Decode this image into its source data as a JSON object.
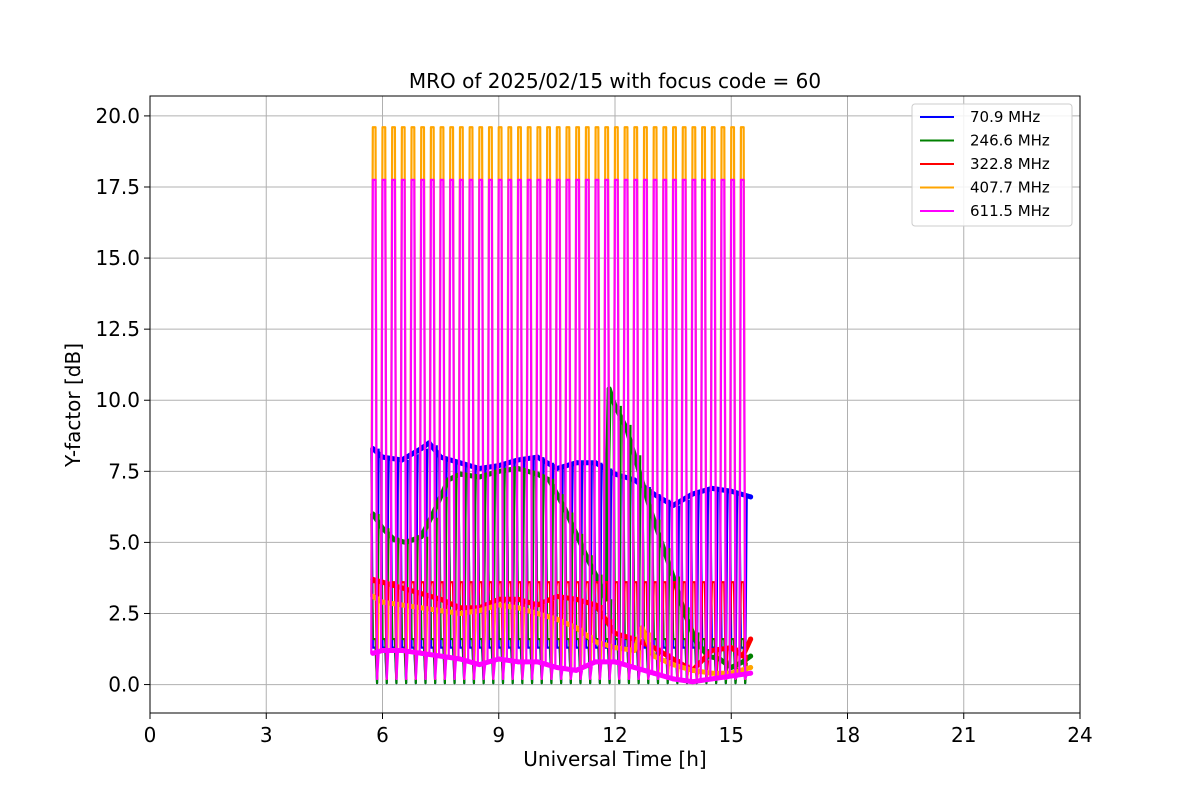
{
  "chart_data": {
    "type": "line",
    "title": "MRO of 2025/02/15 with focus code = 60",
    "xlabel": "Universal Time [h]",
    "ylabel": "Y-factor [dB]",
    "xlim": [
      0,
      24
    ],
    "ylim": [
      -1,
      20.7
    ],
    "xticks": [
      0,
      3,
      6,
      9,
      12,
      15,
      18,
      21,
      24
    ],
    "xtick_labels": [
      "0",
      "3",
      "6",
      "9",
      "12",
      "15",
      "18",
      "21",
      "24"
    ],
    "yticks": [
      0,
      2.5,
      5,
      7.5,
      10,
      12.5,
      15,
      17.5,
      20
    ],
    "ytick_labels": [
      "0.0",
      "2.5",
      "5.0",
      "7.5",
      "10.0",
      "12.5",
      "15.0",
      "17.5",
      "20.0"
    ],
    "grid": true,
    "legend_position": "top-right",
    "calibration_period_h": 0.25,
    "calibration_start_h": 5.75,
    "calibration_end_h": 15.25,
    "series": [
      {
        "name": " 70.9 MHz",
        "color": "#0000ff",
        "x": [
          5.75,
          6.0,
          6.5,
          7.0,
          7.2,
          7.5,
          8.0,
          8.5,
          9.0,
          9.5,
          10.0,
          10.5,
          11.0,
          11.5,
          12.0,
          12.5,
          13.0,
          13.5,
          14.0,
          14.5,
          15.0,
          15.5
        ],
        "values": [
          8.3,
          8.0,
          7.9,
          8.3,
          8.5,
          8.0,
          7.8,
          7.6,
          7.7,
          7.9,
          8.0,
          7.6,
          7.8,
          7.8,
          7.4,
          7.2,
          6.7,
          6.3,
          6.7,
          6.9,
          6.8,
          6.6
        ],
        "calibration_peak": 1.3
      },
      {
        "name": "246.6 MHz",
        "color": "#008000",
        "x": [
          5.75,
          6.0,
          6.3,
          6.6,
          7.0,
          7.3,
          7.7,
          8.0,
          8.5,
          9.0,
          9.5,
          10.0,
          10.3,
          10.7,
          11.0,
          11.3,
          11.6,
          11.75,
          11.85,
          12.0,
          12.3,
          12.6,
          12.9,
          13.2,
          13.5,
          13.8,
          14.1,
          14.4,
          14.7,
          15.0,
          15.3,
          15.5
        ],
        "values": [
          6.0,
          5.5,
          5.1,
          5.0,
          5.2,
          6.0,
          7.2,
          7.4,
          7.3,
          7.5,
          7.6,
          7.4,
          7.2,
          6.2,
          5.3,
          4.4,
          3.6,
          3.0,
          10.4,
          9.8,
          9.0,
          7.6,
          6.2,
          5.0,
          3.8,
          2.5,
          1.5,
          1.0,
          0.9,
          0.6,
          0.8,
          1.0
        ],
        "calibration_peak": 1.6
      },
      {
        "name": "322.8 MHz",
        "color": "#ff0000",
        "x": [
          5.75,
          6.0,
          6.5,
          7.0,
          7.5,
          8.0,
          8.5,
          9.0,
          9.5,
          10.0,
          10.5,
          11.0,
          11.5,
          12.0,
          12.5,
          13.0,
          13.5,
          14.0,
          14.5,
          15.0,
          15.3,
          15.5
        ],
        "values": [
          3.7,
          3.6,
          3.4,
          3.2,
          3.0,
          2.7,
          2.7,
          3.0,
          3.0,
          2.8,
          3.1,
          3.0,
          2.8,
          1.8,
          1.6,
          1.3,
          0.9,
          0.5,
          1.2,
          1.3,
          1.0,
          1.6
        ],
        "calibration_peak": 3.6
      },
      {
        "name": "407.7 MHz",
        "color": "#ffa500",
        "x": [
          5.75,
          6.0,
          6.5,
          7.0,
          7.5,
          8.0,
          8.5,
          9.0,
          9.5,
          10.0,
          10.5,
          11.0,
          11.5,
          12.0,
          12.5,
          12.7,
          13.0,
          13.5,
          14.0,
          14.5,
          15.0,
          15.5
        ],
        "values": [
          3.1,
          2.9,
          2.8,
          2.7,
          2.6,
          2.5,
          2.6,
          2.8,
          2.7,
          2.5,
          2.3,
          2.0,
          1.5,
          1.3,
          1.2,
          2.0,
          1.0,
          0.7,
          0.5,
          0.4,
          0.4,
          0.6
        ],
        "calibration_peak": 19.6
      },
      {
        "name": "611.5 MHz",
        "color": "#ff00ff",
        "x": [
          5.75,
          6.0,
          6.5,
          7.0,
          7.5,
          8.0,
          8.5,
          9.0,
          9.5,
          10.0,
          10.5,
          11.0,
          11.5,
          12.0,
          12.5,
          13.0,
          13.5,
          14.0,
          14.5,
          15.0,
          15.5
        ],
        "values": [
          1.1,
          1.2,
          1.2,
          1.1,
          1.0,
          0.9,
          0.7,
          0.9,
          0.8,
          0.8,
          0.6,
          0.5,
          0.8,
          0.8,
          0.6,
          0.4,
          0.2,
          0.1,
          0.2,
          0.3,
          0.4
        ],
        "calibration_peak": 17.75
      }
    ]
  }
}
